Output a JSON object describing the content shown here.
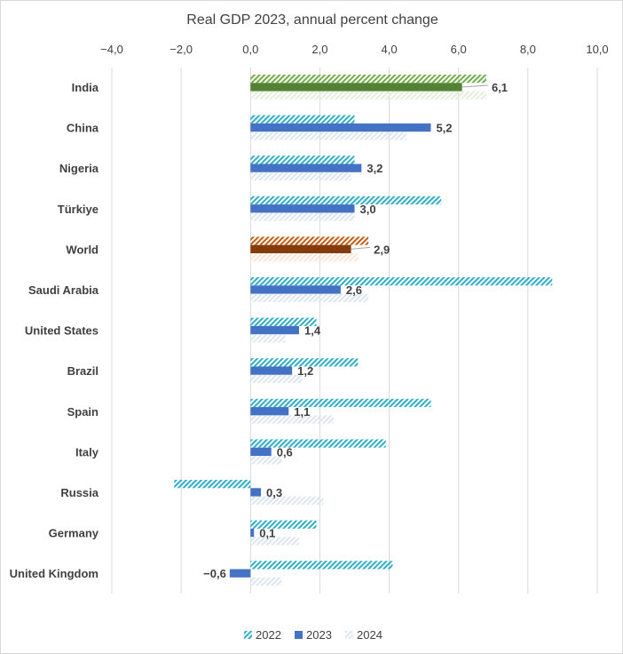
{
  "chart_data": {
    "type": "bar",
    "orientation": "horizontal",
    "title": "Real GDP 2023, annual percent change",
    "xlim": [
      -4,
      10
    ],
    "xticks": [
      "−4,0",
      "−2,0",
      "0,0",
      "2,0",
      "4,0",
      "6,0",
      "8,0",
      "10,0"
    ],
    "xtick_values": [
      -4,
      -2,
      0,
      2,
      4,
      6,
      8,
      10
    ],
    "grid": "vertical",
    "legend_position": "bottom",
    "categories": [
      "India",
      "China",
      "Nigeria",
      "Türkiye",
      "World",
      "Saudi Arabia",
      "United States",
      "Brazil",
      "Spain",
      "Italy",
      "Russia",
      "Germany",
      "United Kingdom"
    ],
    "series": [
      {
        "name": "2022",
        "values": [
          6.8,
          3.0,
          3.0,
          5.5,
          3.4,
          8.7,
          1.9,
          3.1,
          5.2,
          3.9,
          -2.2,
          1.9,
          4.1
        ]
      },
      {
        "name": "2023",
        "values": [
          6.1,
          5.2,
          3.2,
          3.0,
          2.9,
          2.6,
          1.4,
          1.2,
          1.1,
          0.6,
          0.3,
          0.1,
          -0.6
        ]
      },
      {
        "name": "2024",
        "values": [
          6.8,
          4.5,
          2.9,
          3.0,
          3.1,
          3.4,
          1.0,
          1.5,
          2.4,
          0.9,
          2.1,
          1.4,
          0.9
        ]
      }
    ],
    "data_labels_2023": [
      "6,1",
      "5,2",
      "3,2",
      "3,0",
      "2,9",
      "2,6",
      "1,4",
      "1,2",
      "1,1",
      "0,6",
      "0,3",
      "0,1",
      "−0,6"
    ],
    "colors": {
      "2022": "#2eaec8",
      "2023": "#4472c4",
      "2024": "#dbe6f1",
      "India": "#548235",
      "World": "#843c0c",
      "India_light": "#a9d18e",
      "World_light": "#c55a11"
    }
  }
}
